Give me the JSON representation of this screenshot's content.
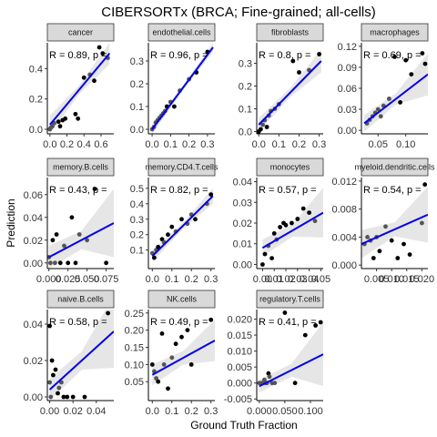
{
  "title": "CIBERSORTx (BRCA; Fine-grained; all-cells)",
  "xlabel": "Ground Truth Fraction",
  "ylabel": "Prediction",
  "colors": {
    "fit": "#0000ee",
    "band": "#e6e6e6",
    "strip": "#d9d9d9",
    "point": "#000000",
    "pointDim": "#555555"
  },
  "chart_data": [
    {
      "type": "scatter",
      "panel": "cancer",
      "annotation": "R = 0.89, p =",
      "xlim": [
        -0.03,
        0.75
      ],
      "ylim": [
        -0.03,
        0.57
      ],
      "xticks": [
        0.0,
        0.2,
        0.4,
        0.6
      ],
      "xtick_labels": [
        "0.0",
        "0.2",
        "0.4",
        "0.6"
      ],
      "yticks": [
        0.0,
        0.2,
        0.4
      ],
      "ytick_labels": [
        "0.0",
        "0.2",
        "0.4"
      ],
      "x": [
        0.0,
        0.01,
        0.03,
        0.05,
        0.1,
        0.12,
        0.15,
        0.18,
        0.3,
        0.33,
        0.4,
        0.47,
        0.52,
        0.58,
        0.62,
        0.68
      ],
      "y": [
        0.0,
        0.01,
        0.02,
        0.04,
        0.05,
        0.02,
        0.06,
        0.07,
        0.1,
        0.07,
        0.34,
        0.36,
        0.32,
        0.54,
        0.5,
        0.47
      ],
      "fit": [
        [
          0.0,
          0.03
        ],
        [
          0.7,
          0.5
        ]
      ],
      "band_halfwidth": [
        0.06,
        0.03,
        0.07
      ]
    },
    {
      "type": "scatter",
      "panel": "endothelial.cells",
      "annotation": "R = 0.96, p =",
      "xlim": [
        -0.02,
        0.34
      ],
      "ylim": [
        -0.02,
        0.38
      ],
      "xticks": [
        0.0,
        0.1,
        0.2,
        0.3
      ],
      "xtick_labels": [
        "0.0",
        "0.1",
        "0.2",
        "0.3"
      ],
      "yticks": [
        0.0,
        0.1,
        0.2,
        0.3
      ],
      "ytick_labels": [
        "0.0",
        "0.1",
        "0.2",
        "0.3"
      ],
      "x": [
        0.0,
        0.01,
        0.02,
        0.03,
        0.04,
        0.05,
        0.06,
        0.07,
        0.08,
        0.1,
        0.12,
        0.15,
        0.2,
        0.24,
        0.3
      ],
      "y": [
        0.0,
        0.01,
        0.03,
        0.04,
        0.05,
        0.06,
        0.07,
        0.08,
        0.1,
        0.12,
        0.1,
        0.17,
        0.22,
        0.25,
        0.34
      ],
      "fit": [
        [
          0.0,
          0.0
        ],
        [
          0.33,
          0.36
        ]
      ],
      "band_halfwidth": [
        0.02,
        0.01,
        0.02
      ]
    },
    {
      "type": "scatter",
      "panel": "fibroblasts",
      "annotation": "R = 0.8, p =",
      "xlim": [
        -0.01,
        0.32
      ],
      "ylim": [
        -0.01,
        0.39
      ],
      "xticks": [
        0.0,
        0.1,
        0.2,
        0.3
      ],
      "xtick_labels": [
        "0.0",
        "0.1",
        "0.2",
        "0.3"
      ],
      "yticks": [
        0.0,
        0.1,
        0.2,
        0.3
      ],
      "ytick_labels": [
        "0.0",
        "0.1",
        "0.2",
        "0.3"
      ],
      "x": [
        0.0,
        0.01,
        0.02,
        0.03,
        0.04,
        0.05,
        0.06,
        0.08,
        0.1,
        0.17,
        0.2,
        0.25,
        0.3
      ],
      "y": [
        0.0,
        0.01,
        0.03,
        0.05,
        0.02,
        0.07,
        0.09,
        0.1,
        0.12,
        0.31,
        0.26,
        0.27,
        0.34
      ],
      "fit": [
        [
          0.0,
          0.03
        ],
        [
          0.31,
          0.31
        ]
      ],
      "band_halfwidth": [
        0.03,
        0.02,
        0.05
      ]
    },
    {
      "type": "scatter",
      "panel": "macrophages",
      "annotation": "R = 0.69, p =",
      "xlim": [
        0.02,
        0.14
      ],
      "ylim": [
        -0.005,
        0.125
      ],
      "xticks": [
        0.05,
        0.1
      ],
      "xtick_labels": [
        "0.05",
        "0.10"
      ],
      "yticks": [
        0.0,
        0.03,
        0.06,
        0.09,
        0.12
      ],
      "ytick_labels": [
        "0.00",
        "0.03",
        "0.06",
        "0.09",
        "0.12"
      ],
      "x": [
        0.03,
        0.035,
        0.04,
        0.045,
        0.05,
        0.055,
        0.06,
        0.07,
        0.08,
        0.09,
        0.1,
        0.11,
        0.13,
        0.135
      ],
      "y": [
        0.01,
        0.015,
        0.02,
        0.025,
        0.03,
        0.02,
        0.035,
        0.045,
        0.105,
        0.04,
        0.1,
        0.08,
        0.11,
        0.095
      ],
      "fit": [
        [
          0.025,
          0.01
        ],
        [
          0.14,
          0.08
        ]
      ],
      "band_halfwidth": [
        0.012,
        0.008,
        0.03
      ]
    },
    {
      "type": "scatter",
      "panel": "memory.B.cells",
      "annotation": "R = 0.43, p =",
      "xlim": [
        -0.002,
        0.085
      ],
      "ylim": [
        -0.005,
        0.075
      ],
      "xticks": [
        0.0,
        0.025,
        0.05,
        0.075
      ],
      "xtick_labels": [
        "0.000",
        "0.025",
        "0.050",
        "0.075"
      ],
      "yticks": [
        0.0,
        0.02,
        0.04,
        0.06
      ],
      "ytick_labels": [
        "0.00",
        "0.02",
        "0.04",
        "0.06"
      ],
      "x": [
        0.0,
        0.002,
        0.005,
        0.008,
        0.01,
        0.015,
        0.02,
        0.025,
        0.03,
        0.035,
        0.04,
        0.05,
        0.06,
        0.075
      ],
      "y": [
        0.005,
        0.0,
        0.02,
        0.0,
        0.025,
        0.0,
        0.015,
        0.0,
        0.04,
        0.0,
        0.025,
        0.02,
        0.065,
        0.0
      ],
      "fit": [
        [
          0.0,
          0.005
        ],
        [
          0.085,
          0.035
        ]
      ],
      "band_halfwidth": [
        0.01,
        0.008,
        0.03
      ]
    },
    {
      "type": "scatter",
      "panel": "memory.CD4.T.cells",
      "annotation": "R = 0.82, p =",
      "xlim": [
        -0.02,
        0.32
      ],
      "ylim": [
        -0.02,
        0.57
      ],
      "xticks": [
        0.0,
        0.1,
        0.2,
        0.3
      ],
      "xtick_labels": [
        "0.0",
        "0.1",
        "0.2",
        "0.3"
      ],
      "yticks": [
        0.1,
        0.2,
        0.3,
        0.4,
        0.5
      ],
      "ytick_labels": [
        "0.1",
        "0.2",
        "0.3",
        "0.4",
        "0.5"
      ],
      "x": [
        0.0,
        0.01,
        0.02,
        0.03,
        0.05,
        0.06,
        0.08,
        0.1,
        0.12,
        0.15,
        0.18,
        0.2,
        0.22,
        0.28,
        0.3
      ],
      "y": [
        0.08,
        0.05,
        0.1,
        0.12,
        0.17,
        0.15,
        0.2,
        0.25,
        0.22,
        0.3,
        0.27,
        0.33,
        0.3,
        0.4,
        0.46
      ],
      "fit": [
        [
          0.0,
          0.06
        ],
        [
          0.31,
          0.45
        ]
      ],
      "band_halfwidth": [
        0.04,
        0.02,
        0.05
      ]
    },
    {
      "type": "scatter",
      "panel": "monocytes",
      "annotation": "R = 0.57, p =",
      "xlim": [
        -0.005,
        0.052
      ],
      "ylim": [
        -0.002,
        0.042
      ],
      "xticks": [
        0.0,
        0.01,
        0.02,
        0.03,
        0.04,
        0.05
      ],
      "xtick_labels": [
        "0.00",
        "0.01",
        "0.02",
        "0.03",
        "0.04",
        "0.05"
      ],
      "yticks": [
        0.0,
        0.01,
        0.02,
        0.03,
        0.04
      ],
      "ytick_labels": [
        "0.00",
        "0.01",
        "0.02",
        "0.03",
        "0.04"
      ],
      "x": [
        0.0,
        0.002,
        0.005,
        0.008,
        0.01,
        0.012,
        0.015,
        0.018,
        0.02,
        0.025,
        0.03,
        0.035,
        0.04,
        0.045
      ],
      "y": [
        0.0,
        0.005,
        0.009,
        0.003,
        0.015,
        0.012,
        0.018,
        0.02,
        0.019,
        0.02,
        0.022,
        0.027,
        0.025,
        0.021
      ],
      "fit": [
        [
          0.0,
          0.008
        ],
        [
          0.052,
          0.025
        ]
      ],
      "band_halfwidth": [
        0.004,
        0.003,
        0.012
      ]
    },
    {
      "type": "scatter",
      "panel": "myeloid.dendritic.cells",
      "annotation": "R = 0.54, p =",
      "xlim": [
        0.0,
        0.022
      ],
      "ylim": [
        -0.0005,
        0.0125
      ],
      "xticks": [
        0.005,
        0.01,
        0.015,
        0.02
      ],
      "xtick_labels": [
        "0.005",
        "0.010",
        "0.015",
        "0.020"
      ],
      "yticks": [
        0.0,
        0.004,
        0.008,
        0.012
      ],
      "ytick_labels": [
        "0.000",
        "0.004",
        "0.008",
        "0.012"
      ],
      "x": [
        0.001,
        0.002,
        0.003,
        0.004,
        0.005,
        0.006,
        0.008,
        0.01,
        0.012,
        0.014,
        0.016,
        0.02,
        0.021
      ],
      "y": [
        0.003,
        0.004,
        0.0035,
        0.001,
        0.004,
        0.002,
        0.0055,
        0.0035,
        0.001,
        0.003,
        0.0015,
        0.006,
        0.0115
      ],
      "fit": [
        [
          0.0,
          0.003
        ],
        [
          0.022,
          0.0072
        ]
      ],
      "band_halfwidth": [
        0.002,
        0.001,
        0.004
      ]
    },
    {
      "type": "scatter",
      "panel": "naive.B.cells",
      "annotation": "R = 0.58, p =",
      "xlim": [
        -0.002,
        0.055
      ],
      "ylim": [
        -0.002,
        0.048
      ],
      "xticks": [
        0.0,
        0.02,
        0.04
      ],
      "xtick_labels": [
        "0.00",
        "0.02",
        "0.04"
      ],
      "yticks": [
        0.0,
        0.02,
        0.04
      ],
      "ytick_labels": [
        "0.00",
        "0.02",
        "0.04"
      ],
      "x": [
        0.0,
        0.0,
        0.001,
        0.002,
        0.003,
        0.005,
        0.007,
        0.008,
        0.01,
        0.012,
        0.015,
        0.02,
        0.03,
        0.05
      ],
      "y": [
        0.039,
        0.008,
        0.0,
        0.02,
        0.012,
        0.015,
        0.002,
        0.005,
        0.008,
        0.0,
        0.0,
        0.0,
        0.0,
        0.046
      ],
      "fit": [
        [
          0.0,
          0.004
        ],
        [
          0.055,
          0.036
        ]
      ],
      "band_halfwidth": [
        0.006,
        0.005,
        0.02
      ]
    },
    {
      "type": "scatter",
      "panel": "NK.cells",
      "annotation": "R = 0.49, p =",
      "xlim": [
        -0.02,
        0.32
      ],
      "ylim": [
        -0.005,
        0.26
      ],
      "xticks": [
        0.0,
        0.1,
        0.2,
        0.3
      ],
      "xtick_labels": [
        "0.0",
        "0.1",
        "0.2",
        "0.3"
      ],
      "yticks": [
        0.05,
        0.1,
        0.15,
        0.2,
        0.25
      ],
      "ytick_labels": [
        "0.05",
        "0.10",
        "0.15",
        "0.20",
        "0.25"
      ],
      "x": [
        0.0,
        0.01,
        0.02,
        0.03,
        0.05,
        0.06,
        0.08,
        0.1,
        0.12,
        0.15,
        0.18,
        0.2,
        0.3
      ],
      "y": [
        0.1,
        0.08,
        0.06,
        0.05,
        0.19,
        0.1,
        0.03,
        0.12,
        0.16,
        0.18,
        0.2,
        0.1,
        0.23
      ],
      "fit": [
        [
          0.0,
          0.07
        ],
        [
          0.32,
          0.17
        ]
      ],
      "band_halfwidth": [
        0.03,
        0.02,
        0.06
      ]
    },
    {
      "type": "scatter",
      "panel": "regulatory.T.cells",
      "annotation": "R = 0.41, p =",
      "xlim": [
        -0.005,
        0.125
      ],
      "ylim": [
        -0.0055,
        0.023
      ],
      "xticks": [
        0.0,
        0.05,
        0.1
      ],
      "xtick_labels": [
        "0.000",
        "0.050",
        "0.100"
      ],
      "yticks": [
        -0.005,
        0.0,
        0.005,
        0.01,
        0.015,
        0.02
      ],
      "ytick_labels": [
        "-0.005",
        "0.000",
        "0.005",
        "0.010",
        "0.015",
        "0.020"
      ],
      "x": [
        0.0,
        0.005,
        0.01,
        0.012,
        0.015,
        0.018,
        0.02,
        0.025,
        0.03,
        0.05,
        0.07,
        0.09,
        0.11,
        0.12
      ],
      "y": [
        0.0,
        0.0,
        0.001,
        0.0,
        0.0,
        0.003,
        0.002,
        0.0,
        0.0,
        0.022,
        0.0,
        0.015,
        0.018,
        0.019
      ],
      "fit": [
        [
          0.0,
          -0.001
        ],
        [
          0.125,
          0.009
        ]
      ],
      "band_halfwidth": [
        0.002,
        0.002,
        0.01
      ]
    }
  ]
}
